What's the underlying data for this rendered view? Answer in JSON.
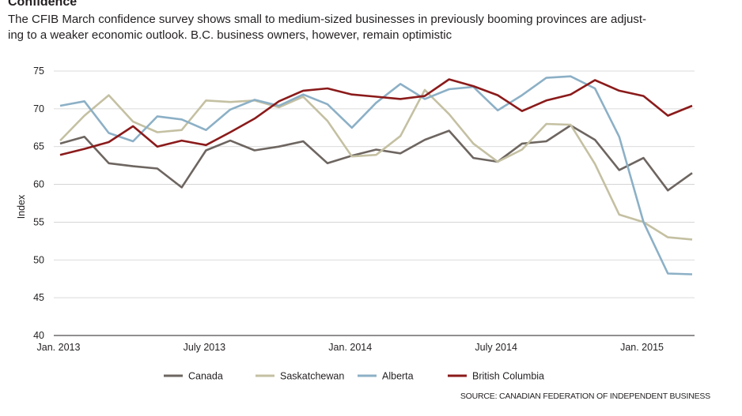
{
  "header": {
    "title": "Confidence",
    "subtitle_line1": "The CFIB March confidence survey shows small to medium-sized businesses in previously booming provinces are adjust-",
    "subtitle_line2": "ing to a weaker economic outlook. B.C. business owners, however, remain optimistic"
  },
  "source": "SOURCE: CANADIAN FEDERATION OF INDEPENDENT BUSINESS",
  "chart_data": {
    "type": "line",
    "title": "Confidence",
    "ylabel": "Index",
    "xlabel": "",
    "ylim": [
      40,
      75
    ],
    "yticks": [
      40,
      45,
      50,
      55,
      60,
      65,
      70,
      75
    ],
    "x_tick_labels": [
      {
        "label": "Jan. 2013",
        "index": 0
      },
      {
        "label": "July 2013",
        "index": 6
      },
      {
        "label": "Jan. 2014",
        "index": 12
      },
      {
        "label": "July 2014",
        "index": 18
      },
      {
        "label": "Jan. 2015",
        "index": 24
      }
    ],
    "num_points": 27,
    "series": [
      {
        "name": "Canada",
        "color": "#6d6560",
        "values": [
          65.4,
          66.3,
          62.8,
          62.4,
          62.1,
          59.6,
          64.5,
          65.8,
          64.5,
          65.0,
          65.7,
          62.8,
          63.8,
          64.6,
          64.1,
          65.9,
          67.1,
          63.5,
          63.0,
          65.4,
          65.7,
          67.8,
          65.9,
          61.9,
          63.5,
          59.2,
          61.5
        ]
      },
      {
        "name": "Saskatchewan",
        "color": "#c4c0a2",
        "values": [
          65.8,
          69.1,
          71.8,
          68.3,
          66.9,
          67.2,
          71.1,
          70.9,
          71.1,
          70.2,
          71.6,
          68.4,
          63.7,
          63.9,
          66.4,
          72.5,
          69.3,
          65.4,
          63.0,
          64.6,
          68.0,
          67.9,
          62.7,
          56.0,
          55.0,
          53.0,
          52.7
        ]
      },
      {
        "name": "Alberta",
        "color": "#8cb0c6",
        "values": [
          70.4,
          71.0,
          66.8,
          65.7,
          69.0,
          68.6,
          67.2,
          69.9,
          71.2,
          70.4,
          71.9,
          70.6,
          67.5,
          70.8,
          73.3,
          71.3,
          72.6,
          72.9,
          69.8,
          71.8,
          74.1,
          74.3,
          72.7,
          66.3,
          55.0,
          48.2,
          48.1
        ]
      },
      {
        "name": "British Columbia",
        "color": "#8b1a1a",
        "values": [
          63.9,
          64.7,
          65.6,
          67.7,
          65.0,
          65.8,
          65.2,
          66.9,
          68.7,
          71.0,
          72.4,
          72.7,
          71.9,
          71.6,
          71.3,
          71.7,
          73.9,
          73.0,
          71.8,
          69.7,
          71.1,
          71.9,
          73.8,
          72.4,
          71.7,
          69.1,
          70.4
        ]
      }
    ],
    "legend": [
      "Canada",
      "Saskatchewan",
      "Alberta",
      "British Columbia"
    ],
    "legend_position": "bottom",
    "grid": true
  }
}
